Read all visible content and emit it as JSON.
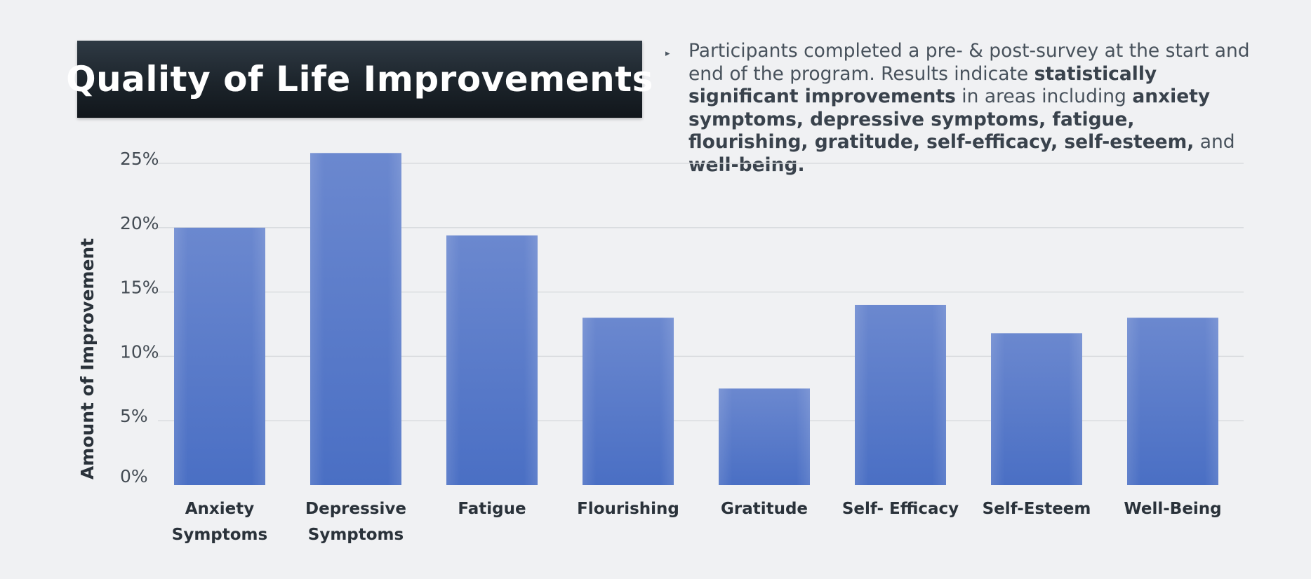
{
  "header": {
    "title": "Quality of Life Improvements"
  },
  "summary": {
    "segments": [
      {
        "text": "Participants completed a pre- & post-survey at the start and end of the program. Results indicate ",
        "bold": false
      },
      {
        "text": "statistically significant improvements",
        "bold": true
      },
      {
        "text": " in areas including ",
        "bold": false
      },
      {
        "text": "anxiety symptoms, depressive symptoms, fatigue, flourishing, gratitude, self-efficacy, self-esteem,",
        "bold": true
      },
      {
        "text": " and ",
        "bold": false
      },
      {
        "text": "well-being.",
        "bold": true
      }
    ]
  },
  "colors": {
    "bar": "#4a6fc4",
    "bar_light": "#6b88cf",
    "grid": "#d9dcdf",
    "tick_text": "#444c54",
    "label_text": "#2a323a"
  },
  "chart_data": {
    "type": "bar",
    "title": "Quality of Life Improvements",
    "ylabel": "Amount of Improvement",
    "xlabel": "",
    "ylim": [
      0,
      25
    ],
    "yticks": [
      0,
      5,
      10,
      15,
      20,
      25
    ],
    "ytick_labels": [
      "0%",
      "5%",
      "10%",
      "15%",
      "20%",
      "25%"
    ],
    "grid": true,
    "categories": [
      [
        "Anxiety",
        "Symptoms"
      ],
      [
        "Depressive",
        "Symptoms"
      ],
      [
        "Fatigue"
      ],
      [
        "Flourishing"
      ],
      [
        "Gratitude"
      ],
      [
        "Self- Efficacy"
      ],
      [
        "Self-Esteem"
      ],
      [
        "Well-Being"
      ]
    ],
    "values": [
      20,
      25.8,
      19.4,
      13,
      7.5,
      14,
      11.8,
      13
    ]
  }
}
